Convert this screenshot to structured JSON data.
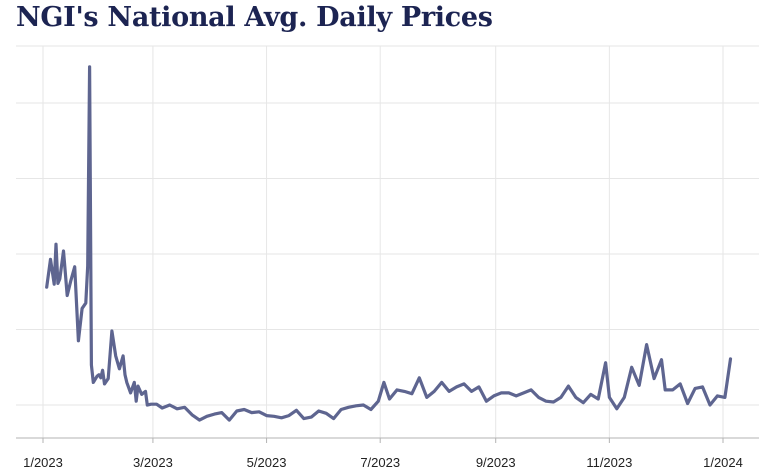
{
  "title": "NGI's National Avg. Daily Prices",
  "chart_data": {
    "type": "line",
    "title": "NGI's National Avg. Daily Prices",
    "xlabel": "",
    "ylabel": "",
    "x_tick_labels": [
      "1/2023",
      "3/2023",
      "5/2023",
      "7/2023",
      "9/2023",
      "11/2023",
      "1/2024"
    ],
    "grid": true,
    "legend": "none",
    "y_tick_labels_visible": false,
    "color": "#5e6590",
    "ylim": [
      0,
      5
    ],
    "series": [
      {
        "x": [
          "2023-01-03",
          "2023-01-05",
          "2023-01-07",
          "2023-01-08",
          "2023-01-09",
          "2023-01-10",
          "2023-01-11",
          "2023-01-12",
          "2023-01-14",
          "2023-01-16",
          "2023-01-18",
          "2023-01-20",
          "2023-01-22",
          "2023-01-24",
          "2023-01-25",
          "2023-01-26",
          "2023-01-27",
          "2023-01-28",
          "2023-01-30",
          "2023-01-31",
          "2023-02-01",
          "2023-02-02",
          "2023-02-03",
          "2023-02-05",
          "2023-02-07",
          "2023-02-09",
          "2023-02-11",
          "2023-02-13",
          "2023-02-14",
          "2023-02-15",
          "2023-02-17",
          "2023-02-19",
          "2023-02-20",
          "2023-02-21",
          "2023-02-23",
          "2023-02-25",
          "2023-02-26",
          "2023-02-28",
          "2023-03-03",
          "2023-03-06",
          "2023-03-10",
          "2023-03-14",
          "2023-03-18",
          "2023-03-22",
          "2023-03-26",
          "2023-03-30",
          "2023-04-03",
          "2023-04-07",
          "2023-04-11",
          "2023-04-15",
          "2023-04-19",
          "2023-04-23",
          "2023-04-27",
          "2023-05-01",
          "2023-05-05",
          "2023-05-09",
          "2023-05-13",
          "2023-05-17",
          "2023-05-21",
          "2023-05-25",
          "2023-05-29",
          "2023-06-02",
          "2023-06-06",
          "2023-06-10",
          "2023-06-14",
          "2023-06-18",
          "2023-06-22",
          "2023-06-26",
          "2023-06-30",
          "2023-07-03",
          "2023-07-06",
          "2023-07-10",
          "2023-07-14",
          "2023-07-18",
          "2023-07-22",
          "2023-07-26",
          "2023-07-30",
          "2023-08-03",
          "2023-08-07",
          "2023-08-11",
          "2023-08-15",
          "2023-08-19",
          "2023-08-23",
          "2023-08-27",
          "2023-08-31",
          "2023-09-04",
          "2023-09-08",
          "2023-09-12",
          "2023-09-16",
          "2023-09-20",
          "2023-09-24",
          "2023-09-28",
          "2023-10-02",
          "2023-10-06",
          "2023-10-10",
          "2023-10-14",
          "2023-10-18",
          "2023-10-22",
          "2023-10-26",
          "2023-10-30",
          "2023-11-01",
          "2023-11-05",
          "2023-11-09",
          "2023-11-13",
          "2023-11-17",
          "2023-11-21",
          "2023-11-25",
          "2023-11-29",
          "2023-12-01",
          "2023-12-05",
          "2023-12-09",
          "2023-12-13",
          "2023-12-17",
          "2023-12-21",
          "2023-12-25",
          "2023-12-29",
          "2024-01-02",
          "2024-01-05"
        ],
        "values": [
          1.56,
          1.93,
          1.6,
          2.13,
          1.61,
          1.67,
          1.85,
          2.04,
          1.45,
          1.65,
          1.83,
          0.85,
          1.28,
          1.35,
          1.84,
          4.48,
          0.53,
          0.3,
          0.38,
          0.4,
          0.36,
          0.46,
          0.28,
          0.35,
          0.98,
          0.65,
          0.48,
          0.65,
          0.4,
          0.3,
          0.16,
          0.3,
          0.05,
          0.25,
          0.14,
          0.18,
          0.0,
          0.01,
          0.01,
          -0.04,
          0.0,
          -0.05,
          -0.03,
          -0.13,
          -0.2,
          -0.15,
          -0.12,
          -0.1,
          -0.2,
          -0.08,
          -0.06,
          -0.1,
          -0.09,
          -0.14,
          -0.15,
          -0.17,
          -0.14,
          -0.07,
          -0.18,
          -0.16,
          -0.08,
          -0.11,
          -0.18,
          -0.06,
          -0.03,
          -0.01,
          0.0,
          -0.06,
          0.05,
          0.3,
          0.08,
          0.2,
          0.18,
          0.15,
          0.36,
          0.1,
          0.18,
          0.3,
          0.18,
          0.24,
          0.28,
          0.18,
          0.24,
          0.05,
          0.12,
          0.16,
          0.16,
          0.12,
          0.16,
          0.2,
          0.1,
          0.05,
          0.04,
          0.1,
          0.25,
          0.1,
          0.03,
          0.14,
          0.08,
          0.56,
          0.1,
          -0.05,
          0.1,
          0.5,
          0.26,
          0.8,
          0.35,
          0.6,
          0.2,
          0.2,
          0.28,
          0.02,
          0.22,
          0.24,
          0.0,
          0.12,
          0.1,
          0.61
        ]
      }
    ]
  }
}
